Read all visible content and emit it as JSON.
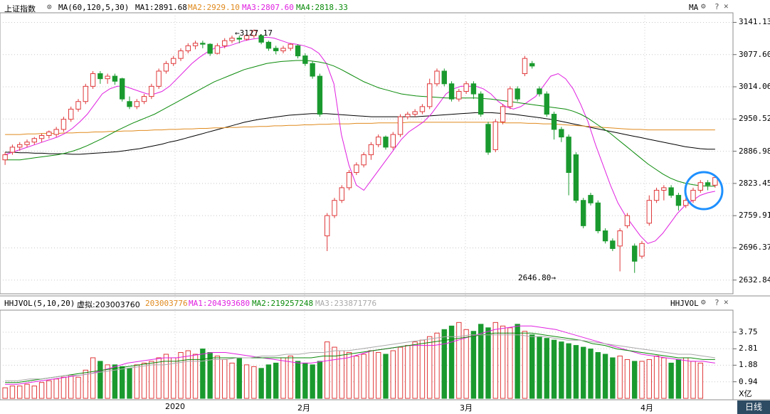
{
  "header": {
    "index_name": "上证指数",
    "ma_params": "MA(60,120,5,30)",
    "ma1": "MA1:2891.68",
    "ma2": "MA2:2929.10",
    "ma3": "MA3:2807.60",
    "ma4": "MA4:2818.33",
    "right_label": "MA"
  },
  "volume_header": {
    "params": "HHJVOL(5,10,20)",
    "virtual": "虚拟:203003760",
    "value": "203003776",
    "ma1": "MA1:204393680",
    "ma2": "MA2:219257248",
    "ma3": "MA3:233871776",
    "right_label": "HHJVOL"
  },
  "colors": {
    "up": "#e0383a",
    "down": "#1a9a2e",
    "ma1": "#000000",
    "ma2": "#e08a1e",
    "ma3": "#e020e0",
    "ma4": "#0a8a0a",
    "highlight_circle": "#1e90ff"
  },
  "x_labels": [
    "2020",
    "2月",
    "3月",
    "4月"
  ],
  "tab_label": "日线",
  "volume_unit": "X亿",
  "annotations": {
    "high": "3127.17",
    "low": "2646.80"
  },
  "chart_data": {
    "type": "candlestick",
    "price_axis": {
      "ylim": [
        2610,
        3160
      ],
      "ticks": [
        "3141.13",
        "3077.60",
        "3014.06",
        "2950.52",
        "2886.98",
        "2823.45",
        "2759.91",
        "2696.37",
        "2632.84"
      ]
    },
    "volume_axis": {
      "ylim": [
        0,
        5
      ],
      "ticks": [
        "3.75",
        "2.81",
        "1.88",
        "0.94"
      ]
    },
    "grid": true,
    "candles": [
      [
        2870,
        2880,
        2860,
        2885
      ],
      [
        2885,
        2895,
        2880,
        2900
      ],
      [
        2895,
        2900,
        2888,
        2905
      ],
      [
        2900,
        2905,
        2895,
        2910
      ],
      [
        2905,
        2912,
        2900,
        2915
      ],
      [
        2912,
        2918,
        2905,
        2922
      ],
      [
        2918,
        2925,
        2912,
        2928
      ],
      [
        2920,
        2930,
        2915,
        2935
      ],
      [
        2930,
        2950,
        2925,
        2955
      ],
      [
        2950,
        2970,
        2945,
        2975
      ],
      [
        2970,
        2985,
        2965,
        2990
      ],
      [
        2985,
        3015,
        2980,
        3020
      ],
      [
        3015,
        3040,
        3010,
        3045
      ],
      [
        3040,
        3030,
        3020,
        3045
      ],
      [
        3030,
        3035,
        3020,
        3040
      ],
      [
        3035,
        3025,
        3018,
        3040
      ],
      [
        3030,
        2990,
        2985,
        3032
      ],
      [
        2985,
        2975,
        2970,
        2995
      ],
      [
        2975,
        2985,
        2970,
        2990
      ],
      [
        2985,
        2995,
        2980,
        3000
      ],
      [
        2995,
        3015,
        2990,
        3020
      ],
      [
        3015,
        3045,
        3010,
        3050
      ],
      [
        3045,
        3060,
        3040,
        3065
      ],
      [
        3060,
        3070,
        3055,
        3075
      ],
      [
        3070,
        3085,
        3065,
        3090
      ],
      [
        3085,
        3095,
        3080,
        3100
      ],
      [
        3095,
        3100,
        3088,
        3105
      ],
      [
        3100,
        3098,
        3090,
        3105
      ],
      [
        3098,
        3080,
        3075,
        3100
      ],
      [
        3080,
        3095,
        3078,
        3100
      ],
      [
        3095,
        3105,
        3090,
        3110
      ],
      [
        3105,
        3110,
        3100,
        3115
      ],
      [
        3110,
        3108,
        3100,
        3115
      ],
      [
        3108,
        3115,
        3105,
        3118
      ],
      [
        3115,
        3125,
        3110,
        3127
      ],
      [
        3115,
        3102,
        3098,
        3118
      ],
      [
        3102,
        3090,
        3085,
        3105
      ],
      [
        3090,
        3085,
        3078,
        3095
      ],
      [
        3085,
        3090,
        3080,
        3095
      ],
      [
        3090,
        3098,
        3085,
        3100
      ],
      [
        3095,
        3075,
        3070,
        3098
      ],
      [
        3075,
        3060,
        3055,
        3080
      ],
      [
        3060,
        3035,
        3030,
        3065
      ],
      [
        3035,
        2960,
        2955,
        3040
      ],
      [
        2720,
        2760,
        2690,
        2765
      ],
      [
        2760,
        2790,
        2755,
        2795
      ],
      [
        2790,
        2815,
        2785,
        2820
      ],
      [
        2815,
        2845,
        2810,
        2850
      ],
      [
        2845,
        2860,
        2840,
        2865
      ],
      [
        2860,
        2880,
        2855,
        2885
      ],
      [
        2880,
        2900,
        2870,
        2905
      ],
      [
        2900,
        2915,
        2895,
        2920
      ],
      [
        2915,
        2895,
        2890,
        2918
      ],
      [
        2895,
        2920,
        2890,
        2925
      ],
      [
        2920,
        2955,
        2915,
        2960
      ],
      [
        2955,
        2960,
        2950,
        2965
      ],
      [
        2960,
        2965,
        2955,
        2970
      ],
      [
        2965,
        2975,
        2960,
        2980
      ],
      [
        2975,
        3020,
        2970,
        3030
      ],
      [
        3020,
        3045,
        3015,
        3050
      ],
      [
        3045,
        3020,
        3015,
        3050
      ],
      [
        3020,
        2990,
        2985,
        3025
      ],
      [
        2990,
        3005,
        2985,
        3010
      ],
      [
        3005,
        3020,
        3000,
        3025
      ],
      [
        3020,
        3000,
        2990,
        3025
      ],
      [
        3000,
        2960,
        2955,
        3005
      ],
      [
        2940,
        2885,
        2880,
        2945
      ],
      [
        2890,
        2945,
        2885,
        2950
      ],
      [
        2945,
        2975,
        2940,
        2980
      ],
      [
        2975,
        3010,
        2970,
        3015
      ],
      [
        3010,
        2990,
        2985,
        3015
      ],
      [
        3040,
        3070,
        3035,
        3075
      ],
      [
        3060,
        3055,
        3050,
        3065
      ],
      [
        3010,
        3000,
        2995,
        3015
      ],
      [
        3000,
        2960,
        2955,
        3005
      ],
      [
        2960,
        2930,
        2910,
        2965
      ],
      [
        2930,
        2915,
        2905,
        2935
      ],
      [
        2915,
        2845,
        2800,
        2920
      ],
      [
        2880,
        2790,
        2785,
        2885
      ],
      [
        2790,
        2740,
        2735,
        2795
      ],
      [
        2800,
        2785,
        2780,
        2805
      ],
      [
        2785,
        2730,
        2725,
        2790
      ],
      [
        2730,
        2710,
        2705,
        2735
      ],
      [
        2710,
        2695,
        2690,
        2715
      ],
      [
        2700,
        2730,
        2650,
        2735
      ],
      [
        2740,
        2760,
        2735,
        2765
      ],
      [
        2700,
        2670,
        2647,
        2705
      ],
      [
        2680,
        2705,
        2675,
        2710
      ],
      [
        2745,
        2790,
        2740,
        2800
      ],
      [
        2790,
        2810,
        2785,
        2815
      ],
      [
        2810,
        2815,
        2790,
        2820
      ],
      [
        2815,
        2800,
        2795,
        2820
      ],
      [
        2800,
        2780,
        2770,
        2805
      ],
      [
        2780,
        2790,
        2775,
        2795
      ],
      [
        2790,
        2810,
        2785,
        2815
      ],
      [
        2810,
        2825,
        2805,
        2830
      ],
      [
        2825,
        2820,
        2810,
        2830
      ],
      [
        2820,
        2835,
        2815,
        2840
      ]
    ],
    "ma_lines": [
      {
        "name": "MA1",
        "values": [
          2885,
          2885,
          2884,
          2884,
          2883,
          2883,
          2882,
          2882,
          2882,
          2881,
          2881,
          2882,
          2883,
          2884,
          2885,
          2886,
          2888,
          2890,
          2892,
          2895,
          2898,
          2901,
          2905,
          2908,
          2912,
          2916,
          2920,
          2924,
          2928,
          2932,
          2936,
          2940,
          2944,
          2947,
          2950,
          2952,
          2954,
          2956,
          2958,
          2959,
          2960,
          2961,
          2961,
          2961,
          2960,
          2959,
          2958,
          2957,
          2956,
          2955,
          2955,
          2955,
          2955,
          2955,
          2955,
          2955,
          2956,
          2957,
          2958,
          2959,
          2960,
          2961,
          2962,
          2963,
          2963,
          2963,
          2962,
          2961,
          2960,
          2958,
          2956,
          2954,
          2952,
          2950,
          2947,
          2944,
          2941,
          2938,
          2935,
          2932,
          2929,
          2926,
          2923,
          2920,
          2917,
          2914,
          2911,
          2908,
          2905,
          2902,
          2899,
          2896,
          2894,
          2892,
          2891,
          2891
        ]
      },
      {
        "name": "MA2",
        "values": [
          2920,
          2920,
          2920,
          2921,
          2921,
          2922,
          2922,
          2922,
          2923,
          2923,
          2924,
          2924,
          2925,
          2925,
          2926,
          2926,
          2927,
          2927,
          2928,
          2928,
          2929,
          2929,
          2930,
          2930,
          2931,
          2931,
          2932,
          2932,
          2933,
          2933,
          2934,
          2934,
          2935,
          2935,
          2936,
          2936,
          2937,
          2937,
          2938,
          2938,
          2939,
          2939,
          2940,
          2940,
          2941,
          2941,
          2941,
          2942,
          2942,
          2942,
          2943,
          2943,
          2943,
          2943,
          2944,
          2944,
          2944,
          2944,
          2944,
          2944,
          2944,
          2944,
          2944,
          2944,
          2944,
          2944,
          2944,
          2943,
          2943,
          2943,
          2942,
          2942,
          2941,
          2941,
          2940,
          2939,
          2938,
          2937,
          2936,
          2935,
          2934,
          2933,
          2932,
          2931,
          2930,
          2930,
          2929,
          2929,
          2929,
          2929,
          2929,
          2929,
          2929,
          2929,
          2929,
          2929
        ]
      },
      {
        "name": "MA3",
        "values": [
          2880,
          2885,
          2890,
          2895,
          2900,
          2905,
          2910,
          2915,
          2922,
          2932,
          2945,
          2960,
          2980,
          3000,
          3010,
          3015,
          3015,
          3010,
          3005,
          3000,
          3000,
          3005,
          3015,
          3030,
          3045,
          3060,
          3072,
          3082,
          3090,
          3092,
          3095,
          3100,
          3105,
          3108,
          3110,
          3112,
          3110,
          3105,
          3100,
          3098,
          3095,
          3090,
          3080,
          3060,
          3020,
          2920,
          2860,
          2820,
          2810,
          2830,
          2850,
          2870,
          2890,
          2910,
          2925,
          2935,
          2945,
          2960,
          2980,
          3000,
          3010,
          3015,
          3015,
          3015,
          3010,
          3000,
          2985,
          2975,
          2970,
          2975,
          2985,
          2995,
          3015,
          3035,
          3040,
          3030,
          3010,
          2980,
          2945,
          2900,
          2860,
          2820,
          2785,
          2760,
          2740,
          2720,
          2705,
          2710,
          2725,
          2745,
          2765,
          2780,
          2790,
          2800,
          2805,
          2808
        ]
      },
      {
        "name": "MA4",
        "values": [
          2870,
          2870,
          2870,
          2872,
          2874,
          2876,
          2878,
          2880,
          2883,
          2887,
          2892,
          2898,
          2905,
          2912,
          2920,
          2928,
          2935,
          2942,
          2948,
          2954,
          2960,
          2968,
          2976,
          2984,
          2992,
          3000,
          3008,
          3016,
          3024,
          3030,
          3036,
          3042,
          3048,
          3052,
          3056,
          3060,
          3062,
          3064,
          3065,
          3066,
          3066,
          3065,
          3063,
          3060,
          3055,
          3048,
          3040,
          3032,
          3024,
          3018,
          3012,
          3008,
          3004,
          3000,
          2998,
          2996,
          2995,
          2994,
          2993,
          2992,
          2992,
          2992,
          2992,
          2992,
          2991,
          2990,
          2988,
          2986,
          2984,
          2982,
          2980,
          2978,
          2976,
          2974,
          2972,
          2970,
          2966,
          2960,
          2952,
          2942,
          2932,
          2922,
          2910,
          2898,
          2886,
          2874,
          2862,
          2852,
          2842,
          2834,
          2828,
          2824,
          2821,
          2819,
          2818,
          2818
        ]
      }
    ],
    "volumes": [
      0.6,
      0.7,
      0.7,
      0.8,
      0.7,
      0.9,
      1.0,
      1.1,
      1.2,
      1.3,
      1.2,
      1.6,
      2.3,
      2.1,
      1.9,
      1.9,
      1.8,
      1.7,
      1.9,
      2.0,
      2.1,
      2.3,
      2.5,
      2.3,
      2.6,
      2.7,
      2.5,
      2.8,
      2.6,
      2.4,
      2.2,
      2.0,
      2.3,
      1.9,
      1.8,
      1.7,
      1.9,
      2.0,
      2.3,
      2.4,
      2.1,
      2.0,
      1.9,
      2.1,
      3.2,
      2.9,
      2.7,
      2.6,
      2.4,
      2.5,
      2.7,
      2.6,
      2.5,
      2.7,
      2.9,
      3.0,
      3.2,
      3.3,
      3.5,
      3.7,
      3.9,
      4.1,
      4.3,
      3.9,
      3.8,
      4.2,
      4.0,
      4.3,
      4.1,
      4.0,
      4.2,
      3.8,
      3.6,
      3.5,
      3.4,
      3.3,
      3.2,
      3.1,
      3.0,
      2.9,
      2.8,
      2.6,
      2.5,
      2.3,
      2.4,
      2.2,
      2.1,
      2.1,
      2.2,
      2.4,
      2.3,
      2.0,
      2.2,
      2.3,
      2.1,
      2.0
    ],
    "volume_ma_lines": [
      {
        "name": "MA1",
        "values": [
          0.8,
          0.8,
          0.9,
          1.0,
          1.1,
          1.2,
          1.3,
          1.4,
          1.6,
          1.8,
          2.0,
          2.1,
          2.2,
          2.3,
          2.3,
          2.4,
          2.5,
          2.6,
          2.6,
          2.5,
          2.4,
          2.3,
          2.2,
          2.1,
          2.0,
          2.0,
          2.1,
          2.2,
          2.3,
          2.5,
          2.7,
          2.8,
          2.9,
          3.0,
          3.0,
          3.0,
          3.1,
          3.3,
          3.5,
          3.7,
          3.9,
          4.0,
          4.1,
          4.1,
          4.0,
          3.9,
          3.7,
          3.5,
          3.3,
          3.1,
          2.9,
          2.7,
          2.5,
          2.4,
          2.3,
          2.2,
          2.1,
          2.1,
          2.0
        ]
      },
      {
        "name": "MA2",
        "values": [
          0.9,
          0.9,
          1.0,
          1.1,
          1.2,
          1.3,
          1.4,
          1.5,
          1.6,
          1.7,
          1.8,
          1.9,
          2.0,
          2.1,
          2.1,
          2.2,
          2.2,
          2.3,
          2.3,
          2.3,
          2.3,
          2.3,
          2.3,
          2.3,
          2.3,
          2.3,
          2.4,
          2.4,
          2.5,
          2.6,
          2.7,
          2.8,
          2.9,
          3.0,
          3.1,
          3.2,
          3.3,
          3.4,
          3.5,
          3.6,
          3.7,
          3.7,
          3.7,
          3.7,
          3.6,
          3.5,
          3.4,
          3.3,
          3.1,
          3.0,
          2.8,
          2.7,
          2.6,
          2.5,
          2.4,
          2.3,
          2.3,
          2.2,
          2.2
        ]
      },
      {
        "name": "MA3",
        "values": [
          1.0,
          1.0,
          1.1,
          1.1,
          1.2,
          1.3,
          1.3,
          1.4,
          1.5,
          1.6,
          1.7,
          1.8,
          1.9,
          1.9,
          2.0,
          2.1,
          2.1,
          2.2,
          2.2,
          2.3,
          2.3,
          2.4,
          2.4,
          2.5,
          2.5,
          2.6,
          2.6,
          2.7,
          2.7,
          2.8,
          2.9,
          3.0,
          3.1,
          3.2,
          3.3,
          3.4,
          3.5,
          3.5,
          3.6,
          3.6,
          3.6,
          3.6,
          3.6,
          3.5,
          3.5,
          3.4,
          3.3,
          3.3,
          3.2,
          3.1,
          3.0,
          2.9,
          2.8,
          2.7,
          2.6,
          2.5,
          2.5,
          2.4,
          2.3
        ]
      }
    ]
  }
}
